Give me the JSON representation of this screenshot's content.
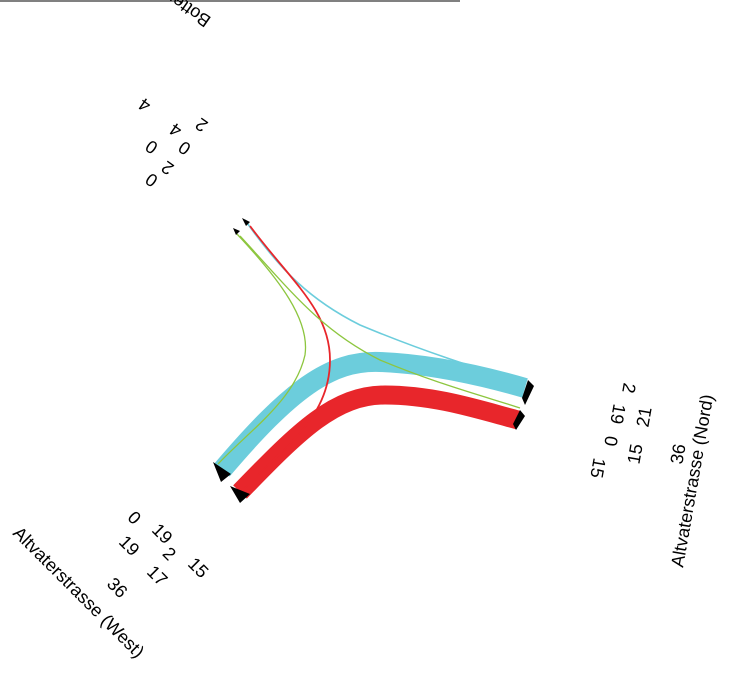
{
  "colors": {
    "flow_cyan": "#6ccddc",
    "flow_red": "#e8262b",
    "flow_green": "#8dc63f",
    "marker": "#000000",
    "text": "#000000"
  },
  "streets": {
    "north_west_arm": "Bottenbrunnenstrasse",
    "east_arm": "Altvaterstrasse (Nord)",
    "south_west_arm": "Altvaterstrasse (West)"
  },
  "counts": {
    "bottenbrunnen": {
      "total": "4",
      "out_row": [
        "0",
        "4",
        "2"
      ],
      "in_row": [
        "0",
        "2",
        "0"
      ]
    },
    "altvater_nord": {
      "in_row": [
        "15",
        "0",
        "19",
        "2"
      ],
      "out_row": [
        "15",
        "21"
      ],
      "total": "36"
    },
    "altvater_west": {
      "in_row": [
        "0",
        "19"
      ],
      "out_row": [
        "19",
        "2",
        "15"
      ],
      "sub_row": [
        "17"
      ],
      "total": "36"
    }
  }
}
